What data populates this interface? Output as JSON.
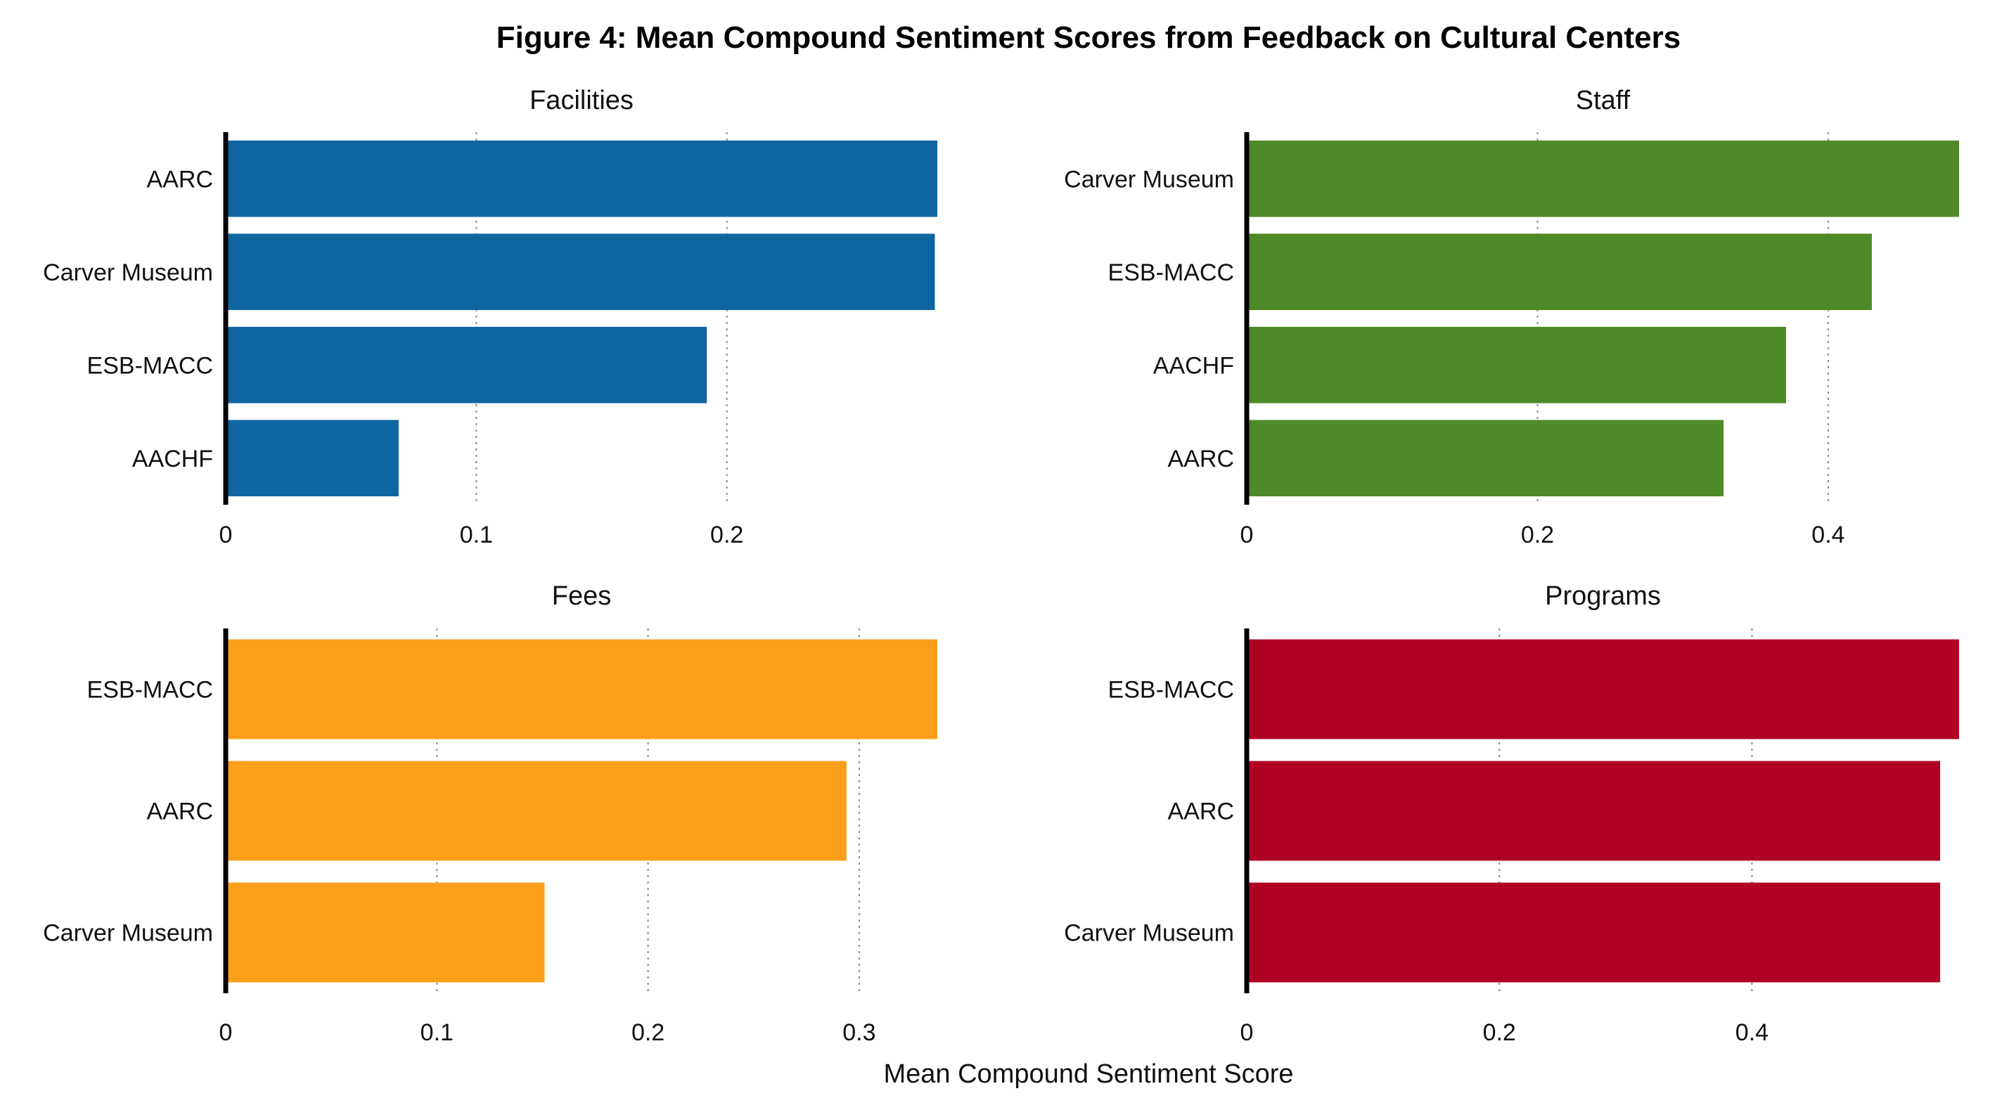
{
  "chart_data": {
    "title": "Figure 4: Mean Compound Sentiment Scores from Feedback on Cultural Centers",
    "xlabel": "Mean Compound Sentiment Score",
    "panels": [
      {
        "type": "bar",
        "orientation": "horizontal",
        "title": "Facilities",
        "color": "#0f65a0",
        "xlim": [
          0,
          0.284
        ],
        "ticks": [
          0,
          0.1,
          0.2
        ],
        "tick_labels": [
          "0",
          "0.1",
          "0.2"
        ],
        "categories": [
          "AARC",
          "Carver Museum",
          "ESB-MACC",
          "AACHF"
        ],
        "values": [
          0.284,
          0.283,
          0.192,
          0.069
        ]
      },
      {
        "type": "bar",
        "orientation": "horizontal",
        "title": "Staff",
        "color": "#4f8a28",
        "xlim": [
          0,
          0.49
        ],
        "ticks": [
          0,
          0.2,
          0.4
        ],
        "tick_labels": [
          "0",
          "0.2",
          "0.4"
        ],
        "categories": [
          "Carver Museum",
          "ESB-MACC",
          "AACHF",
          "AARC"
        ],
        "values": [
          0.49,
          0.43,
          0.371,
          0.328
        ]
      },
      {
        "type": "bar",
        "orientation": "horizontal",
        "title": "Fees",
        "color": "#fb9f1a",
        "xlim": [
          0,
          0.337
        ],
        "ticks": [
          0,
          0.1,
          0.2,
          0.3
        ],
        "tick_labels": [
          "0",
          "0.1",
          "0.2",
          "0.3"
        ],
        "categories": [
          "ESB-MACC",
          "AARC",
          "Carver Museum"
        ],
        "values": [
          0.337,
          0.294,
          0.151
        ]
      },
      {
        "type": "bar",
        "orientation": "horizontal",
        "title": "Programs",
        "color": "#b00024",
        "xlim": [
          0,
          0.564
        ],
        "ticks": [
          0,
          0.2,
          0.4
        ],
        "tick_labels": [
          "0",
          "0.2",
          "0.4"
        ],
        "categories": [
          "ESB-MACC",
          "AARC",
          "Carver Museum"
        ],
        "values": [
          0.564,
          0.549,
          0.549
        ]
      }
    ]
  }
}
